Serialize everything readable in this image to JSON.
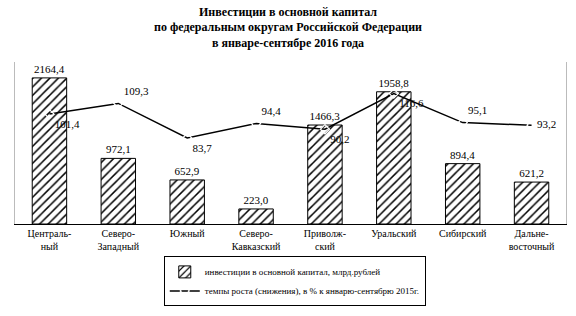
{
  "chart_data": {
    "type": "bar",
    "title": "Инвестиции в основной капитал\nпо федеральным округам Российской Федерации\nв январе-сентябре 2016 года",
    "categories": [
      "Централь-\nный",
      "Северо-\nЗападный",
      "Южный",
      "Северо-\nКавказский",
      "Приволж-\nский",
      "Уральский",
      "Сибирский",
      "Дальне-\nвосточный"
    ],
    "series": [
      {
        "name": "инвестиции в основной капитал, млрд.рублей",
        "type": "bar",
        "color": "#000000",
        "marker": "hatch",
        "values": [
          2164.4,
          972.1,
          652.9,
          223.0,
          1466.3,
          1958.8,
          894.4,
          621.2
        ],
        "value_labels": [
          "2164,4",
          "972,1",
          "652,9",
          "223,0",
          "1466,3",
          "1958,8",
          "894,4",
          "621,2"
        ]
      },
      {
        "name": "темпы роста (снижения), в % к январю-сентябрю 2015г.",
        "type": "line",
        "axis": "y2",
        "color": "#000000",
        "marker": "diamond",
        "line_style": "solid",
        "values": [
          101.4,
          109.3,
          83.7,
          94.4,
          90.2,
          116.6,
          95.1,
          93.2
        ],
        "value_labels": [
          "101,4",
          "109,3",
          "83,7",
          "94,4",
          "90,2",
          "116,6",
          "95,1",
          "93,2"
        ]
      }
    ],
    "ylim": [
      0,
      2400
    ],
    "y2lim": [
      20,
      140
    ],
    "yticks": [],
    "y2ticks": [],
    "grid": false,
    "legend": "bottom",
    "data_labels": true,
    "tick_labels": "x"
  }
}
